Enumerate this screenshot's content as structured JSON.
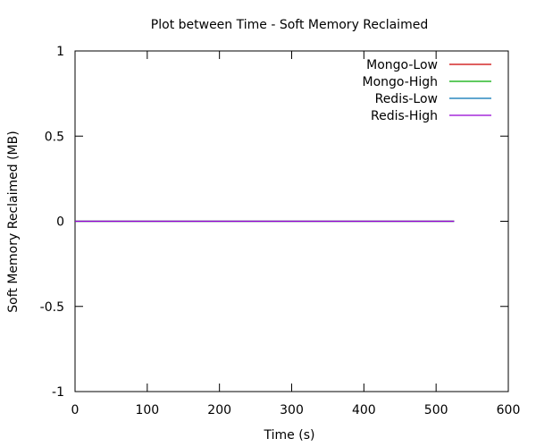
{
  "chart_data": {
    "type": "line",
    "title": "Plot between Time - Soft Memory Reclaimed",
    "xlabel": "Time (s)",
    "ylabel": "Soft Memory Reclaimed (MB)",
    "xlim": [
      0,
      600
    ],
    "ylim": [
      -1,
      1
    ],
    "xticks": [
      "0",
      "100",
      "200",
      "300",
      "400",
      "500",
      "600"
    ],
    "yticks": [
      "1",
      "0.5",
      "0",
      "-0.5",
      "-1"
    ],
    "grid": false,
    "legend_position": "top-right",
    "series": [
      {
        "name": "Mongo-Low",
        "color": "#cc0000",
        "points": [
          [
            0,
            0
          ],
          [
            525,
            0
          ]
        ]
      },
      {
        "name": "Mongo-High",
        "color": "#00aa00",
        "points": [
          [
            0,
            0
          ],
          [
            525,
            0
          ]
        ]
      },
      {
        "name": "Redis-Low",
        "color": "#0072b2",
        "points": [
          [
            0,
            0
          ],
          [
            525,
            0
          ]
        ]
      },
      {
        "name": "Redis-High",
        "color": "#9400d3",
        "points": [
          [
            0,
            0
          ],
          [
            525,
            0
          ]
        ]
      }
    ]
  }
}
